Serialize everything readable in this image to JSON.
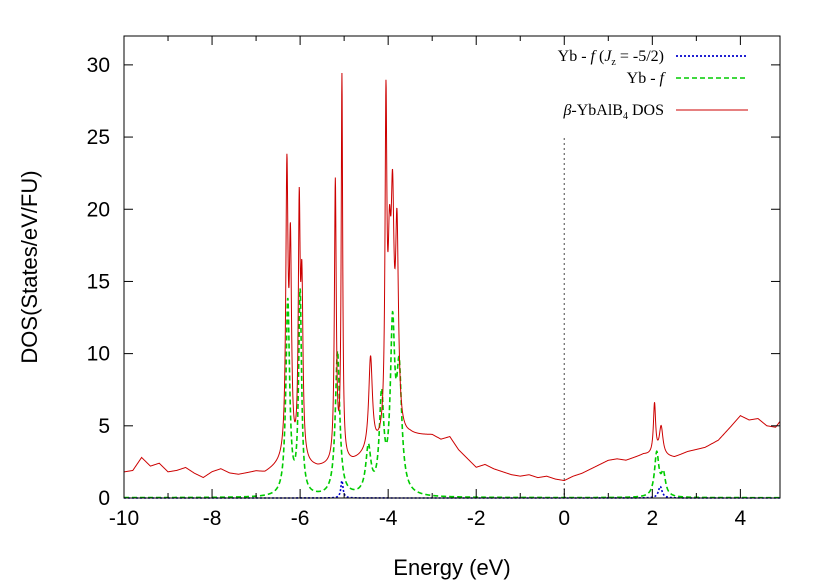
{
  "chart_data": {
    "type": "line",
    "title": "",
    "xlabel": "Energy (eV)",
    "ylabel": "DOS(States/eV/FU)",
    "xlim": [
      -10,
      4.9
    ],
    "ylim": [
      0,
      32
    ],
    "xticks": [
      -10,
      -8,
      -6,
      -4,
      -2,
      0,
      2,
      4
    ],
    "yticks": [
      0,
      5,
      10,
      15,
      20,
      25,
      30
    ],
    "xtick_labels": [
      "-10",
      "-8",
      "-6",
      "-4",
      "-2",
      "0",
      "2",
      "4"
    ],
    "ytick_labels": [
      "0",
      "5",
      "10",
      "15",
      "20",
      "25",
      "30"
    ],
    "fermi_level": {
      "x": 0,
      "style": "dotted",
      "color": "#666666"
    },
    "legend": {
      "position": "top-right",
      "entries": [
        {
          "key": "jz",
          "label": "Yb - f (Jz = -5/2)",
          "prefix": "Yb - ",
          "f": "f",
          "jz_symbol": "J",
          "jz_sub": "z",
          "jz_rest": " = -5/2)"
        },
        {
          "key": "ybf",
          "label": "Yb - f",
          "prefix": "Yb - ",
          "f": "f"
        },
        {
          "key": "total",
          "label": "β-YbAlB4 DOS",
          "beta": "β",
          "compound": "-YbAlB",
          "sub": "4",
          "suffix": " DOS"
        }
      ]
    },
    "series": [
      {
        "name": "β-YbAlB4 DOS",
        "color": "#cc0000",
        "style": "solid",
        "baseline": [
          [
            -10,
            1.8
          ],
          [
            -9.8,
            1.9
          ],
          [
            -9.6,
            2.8
          ],
          [
            -9.4,
            2.2
          ],
          [
            -9.2,
            2.4
          ],
          [
            -9.0,
            1.8
          ],
          [
            -8.8,
            1.9
          ],
          [
            -8.6,
            2.1
          ],
          [
            -8.4,
            1.7
          ],
          [
            -8.2,
            1.4
          ],
          [
            -8.0,
            1.8
          ],
          [
            -7.8,
            2.0
          ],
          [
            -7.6,
            1.7
          ],
          [
            -7.4,
            1.6
          ],
          [
            -7.2,
            1.7
          ],
          [
            -7.0,
            1.8
          ],
          [
            -6.8,
            1.7
          ],
          [
            -6.6,
            2.0
          ],
          [
            -6.4,
            2.3
          ],
          [
            -5.6,
            2.0
          ],
          [
            -4.8,
            2.4
          ],
          [
            -3.5,
            4.2
          ],
          [
            -3.0,
            4.3
          ],
          [
            -2.8,
            4.0
          ],
          [
            -2.6,
            4.2
          ],
          [
            -2.4,
            3.3
          ],
          [
            -2.2,
            2.7
          ],
          [
            -2.0,
            2.1
          ],
          [
            -1.8,
            2.3
          ],
          [
            -1.6,
            2.0
          ],
          [
            -1.4,
            1.8
          ],
          [
            -1.2,
            1.6
          ],
          [
            -1.0,
            1.5
          ],
          [
            -0.8,
            1.6
          ],
          [
            -0.6,
            1.4
          ],
          [
            -0.4,
            1.5
          ],
          [
            -0.2,
            1.3
          ],
          [
            0.0,
            1.2
          ],
          [
            0.2,
            1.5
          ],
          [
            0.4,
            1.7
          ],
          [
            0.6,
            2.0
          ],
          [
            0.8,
            2.3
          ],
          [
            1.0,
            2.6
          ],
          [
            1.2,
            2.7
          ],
          [
            1.4,
            2.6
          ],
          [
            1.6,
            2.8
          ],
          [
            1.8,
            3.0
          ],
          [
            2.5,
            2.8
          ],
          [
            2.8,
            3.2
          ],
          [
            3.2,
            3.5
          ],
          [
            3.5,
            4.0
          ],
          [
            3.8,
            5.0
          ],
          [
            4.0,
            5.7
          ],
          [
            4.2,
            5.4
          ],
          [
            4.4,
            5.5
          ],
          [
            4.6,
            5.0
          ],
          [
            4.8,
            4.9
          ],
          [
            4.9,
            5.3
          ]
        ],
        "peaks": [
          [
            -6.3,
            19.6,
            0.03
          ],
          [
            -6.22,
            14.0,
            0.03
          ],
          [
            -6.02,
            16.5,
            0.025
          ],
          [
            -5.96,
            11.5,
            0.03
          ],
          [
            -5.2,
            19.4,
            0.025
          ],
          [
            -5.05,
            26.5,
            0.02
          ],
          [
            -4.4,
            6.5,
            0.05
          ],
          [
            -4.05,
            22.0,
            0.025
          ],
          [
            -3.97,
            10.5,
            0.04
          ],
          [
            -3.9,
            14.0,
            0.04
          ],
          [
            -3.8,
            13.5,
            0.04
          ],
          [
            2.05,
            3.5,
            0.03
          ],
          [
            2.2,
            2.0,
            0.05
          ]
        ]
      },
      {
        "name": "Yb - f",
        "color": "#00cc00",
        "style": "dashed",
        "baseline": [
          [
            -10,
            0.02
          ],
          [
            4.9,
            0.02
          ]
        ],
        "peaks": [
          [
            -6.28,
            13.5,
            0.05
          ],
          [
            -6.0,
            14.0,
            0.04
          ],
          [
            -5.15,
            10.0,
            0.06
          ],
          [
            -4.45,
            3.2,
            0.07
          ],
          [
            -4.15,
            6.5,
            0.06
          ],
          [
            -3.9,
            11.0,
            0.06
          ],
          [
            -3.75,
            8.0,
            0.07
          ],
          [
            2.1,
            3.0,
            0.06
          ],
          [
            2.25,
            1.5,
            0.06
          ]
        ]
      },
      {
        "name": "Yb - f (Jz = -5/2)",
        "color": "#0000cc",
        "style": "dotted",
        "baseline": [
          [
            -10,
            0.0
          ],
          [
            4.9,
            0.0
          ]
        ],
        "peaks": [
          [
            -5.05,
            1.2,
            0.03
          ],
          [
            2.18,
            0.8,
            0.05
          ]
        ]
      }
    ]
  }
}
